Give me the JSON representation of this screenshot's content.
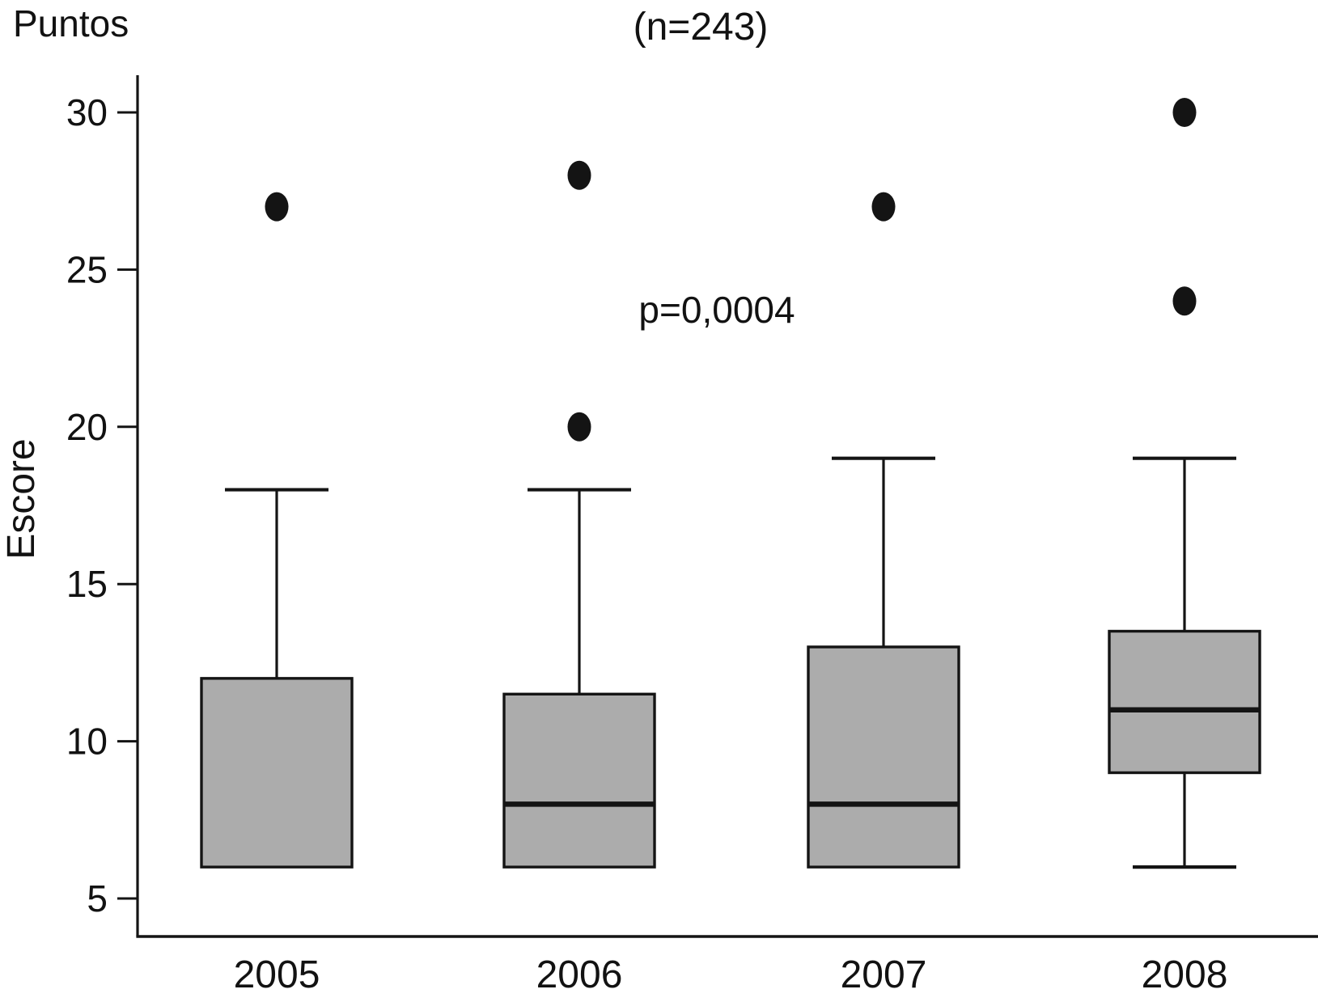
{
  "figure": {
    "title_left": "Puntos",
    "subtitle": "(n=243)",
    "annotation": "p=0,0004",
    "y_axis_title": "Escore"
  },
  "chart_data": {
    "type": "boxplot",
    "title": "Puntos",
    "subtitle": "(n=243)",
    "annotation": "p=0,0004",
    "xlabel": "",
    "ylabel": "Escore",
    "categories": [
      "2005",
      "2006",
      "2007",
      "2008"
    ],
    "yticks": [
      5,
      10,
      15,
      20,
      25,
      30
    ],
    "ylim": [
      5,
      30
    ],
    "grid": false,
    "legend": null,
    "series": [
      {
        "category": "2005",
        "whisker_low": 6,
        "q1": 6,
        "median": 12,
        "q3": 12,
        "whisker_high": 18,
        "outliers": [
          27
        ]
      },
      {
        "category": "2006",
        "whisker_low": 6,
        "q1": 6,
        "median": 8,
        "q3": 11.5,
        "whisker_high": 18,
        "outliers": [
          20,
          28
        ]
      },
      {
        "category": "2007",
        "whisker_low": 6,
        "q1": 6,
        "median": 8,
        "q3": 13,
        "whisker_high": 19,
        "outliers": [
          27
        ]
      },
      {
        "category": "2008",
        "whisker_low": 6,
        "q1": 9,
        "median": 11,
        "q3": 13.5,
        "whisker_high": 19,
        "outliers": [
          24,
          30
        ]
      }
    ],
    "colors": {
      "box_fill": "#acacac",
      "line": "#141414",
      "outlier_fill": "#141414",
      "text": "#121212"
    }
  }
}
